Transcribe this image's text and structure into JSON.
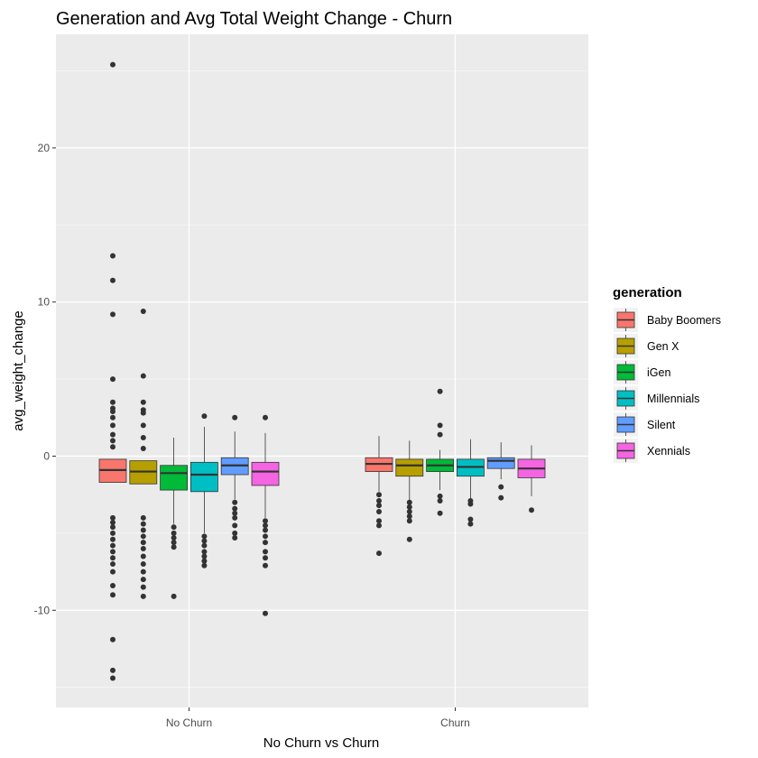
{
  "chart_data": {
    "type": "box",
    "title": "Generation and Avg Total Weight Change - Churn",
    "xlabel": "No Churn vs Churn",
    "ylabel": "avg_weight_change",
    "categories": [
      "No Churn",
      "Churn"
    ],
    "ylim": [
      -15.5,
      27.0
    ],
    "yticks": [
      -10,
      0,
      10,
      20
    ],
    "grid": true,
    "legend": {
      "title": "generation",
      "placement": "right"
    },
    "series": [
      {
        "name": "Baby Boomers",
        "color": "#F8766D",
        "boxes": [
          {
            "category": "No Churn",
            "lower_whisker": -1.7,
            "q1": -1.7,
            "median": -0.9,
            "q3": -0.2,
            "upper_whisker": -0.2,
            "outliers": [
              25.4,
              13.0,
              11.4,
              9.2,
              5.0,
              3.5,
              3.1,
              2.9,
              2.5,
              2.0,
              1.4,
              1.0,
              0.6,
              -4.0,
              -4.3,
              -4.6,
              -5.0,
              -5.4,
              -5.8,
              -6.2,
              -6.6,
              -7.0,
              -7.5,
              -8.4,
              -9.0,
              -11.9,
              -13.9,
              -14.4
            ]
          },
          {
            "category": "Churn",
            "lower_whisker": -2.3,
            "q1": -1.0,
            "median": -0.5,
            "q3": -0.1,
            "upper_whisker": 1.3,
            "outliers": [
              -2.5,
              -2.9,
              -3.2,
              -3.6,
              -4.2,
              -4.5,
              -6.3
            ]
          }
        ]
      },
      {
        "name": "Gen X",
        "color": "#B79F00",
        "boxes": [
          {
            "category": "No Churn",
            "lower_whisker": -1.8,
            "q1": -1.8,
            "median": -1.0,
            "q3": -0.3,
            "upper_whisker": -0.3,
            "outliers": [
              9.4,
              5.2,
              3.5,
              3.0,
              2.8,
              2.0,
              1.2,
              0.5,
              -4.0,
              -4.4,
              -4.8,
              -5.2,
              -5.6,
              -6.0,
              -6.5,
              -7.0,
              -7.5,
              -8.0,
              -8.5,
              -9.1
            ]
          },
          {
            "category": "Churn",
            "lower_whisker": -2.9,
            "q1": -1.3,
            "median": -0.6,
            "q3": -0.2,
            "upper_whisker": 1.0,
            "outliers": [
              -3.0,
              -3.3,
              -3.6,
              -3.9,
              -4.2,
              -5.4
            ]
          }
        ]
      },
      {
        "name": "iGen",
        "color": "#00BA38",
        "boxes": [
          {
            "category": "No Churn",
            "lower_whisker": -4.4,
            "q1": -2.2,
            "median": -1.1,
            "q3": -0.6,
            "upper_whisker": 1.2,
            "outliers": [
              -4.6,
              -5.0,
              -5.3,
              -5.6,
              -5.9,
              -9.1
            ]
          },
          {
            "category": "Churn",
            "lower_whisker": -2.2,
            "q1": -1.0,
            "median": -0.6,
            "q3": -0.2,
            "upper_whisker": 0.4,
            "outliers": [
              4.2,
              2.0,
              1.4,
              -2.6,
              -2.9,
              -3.7
            ]
          }
        ]
      },
      {
        "name": "Millennials",
        "color": "#00BFC4",
        "boxes": [
          {
            "category": "No Churn",
            "lower_whisker": -5.0,
            "q1": -2.3,
            "median": -1.2,
            "q3": -0.4,
            "upper_whisker": 1.9,
            "outliers": [
              2.6,
              -5.2,
              -5.5,
              -5.8,
              -6.2,
              -6.5,
              -6.8,
              -7.1
            ]
          },
          {
            "category": "Churn",
            "lower_whisker": -2.8,
            "q1": -1.3,
            "median": -0.7,
            "q3": -0.2,
            "upper_whisker": 1.1,
            "outliers": [
              -2.9,
              -3.1,
              -4.1,
              -4.4
            ]
          }
        ]
      },
      {
        "name": "Silent",
        "color": "#619CFF",
        "boxes": [
          {
            "category": "No Churn",
            "lower_whisker": -2.8,
            "q1": -1.2,
            "median": -0.6,
            "q3": -0.1,
            "upper_whisker": 1.6,
            "outliers": [
              2.5,
              -3.0,
              -3.4,
              -3.7,
              -4.0,
              -4.5,
              -5.0,
              -5.3
            ]
          },
          {
            "category": "Churn",
            "lower_whisker": -1.5,
            "q1": -0.8,
            "median": -0.3,
            "q3": -0.1,
            "upper_whisker": 0.9,
            "outliers": [
              -2.0,
              -2.7
            ]
          }
        ]
      },
      {
        "name": "Xennials",
        "color": "#F564E3",
        "boxes": [
          {
            "category": "No Churn",
            "lower_whisker": -4.0,
            "q1": -1.9,
            "median": -1.0,
            "q3": -0.4,
            "upper_whisker": 1.5,
            "outliers": [
              2.5,
              -4.2,
              -4.5,
              -4.8,
              -5.2,
              -5.6,
              -6.2,
              -6.6,
              -7.1,
              -10.2
            ]
          },
          {
            "category": "Churn",
            "lower_whisker": -2.6,
            "q1": -1.4,
            "median": -0.8,
            "q3": -0.2,
            "upper_whisker": 0.7,
            "outliers": [
              -3.5
            ]
          }
        ]
      }
    ]
  }
}
